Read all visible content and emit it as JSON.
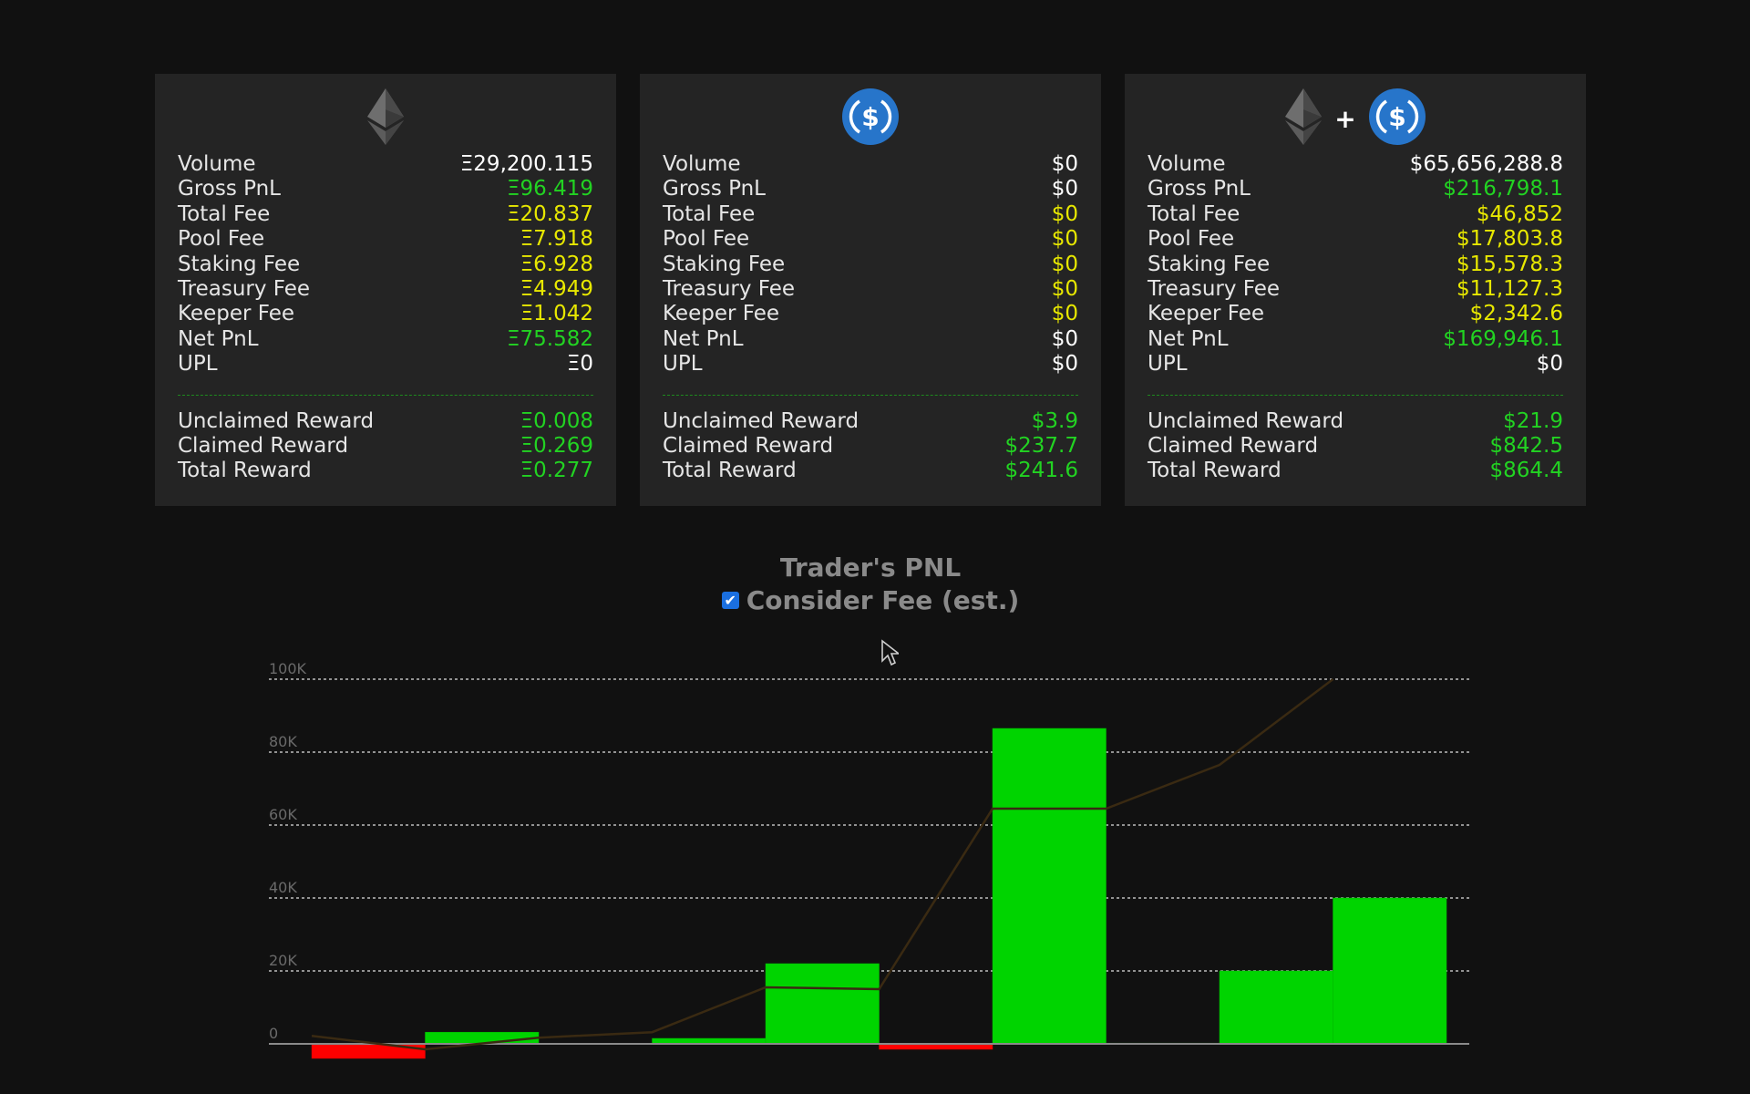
{
  "cards": [
    {
      "icons": [
        "eth-icon"
      ],
      "stats": [
        {
          "label": "Volume",
          "value": "Ξ29,200.115",
          "color": "white"
        },
        {
          "label": "Gross PnL",
          "value": "Ξ96.419",
          "color": "green"
        },
        {
          "label": "Total Fee",
          "value": "Ξ20.837",
          "color": "yellow"
        },
        {
          "label": "Pool Fee",
          "value": "Ξ7.918",
          "color": "yellow"
        },
        {
          "label": "Staking Fee",
          "value": "Ξ6.928",
          "color": "yellow"
        },
        {
          "label": "Treasury Fee",
          "value": "Ξ4.949",
          "color": "yellow"
        },
        {
          "label": "Keeper Fee",
          "value": "Ξ1.042",
          "color": "yellow"
        },
        {
          "label": "Net PnL",
          "value": "Ξ75.582",
          "color": "green"
        },
        {
          "label": "UPL",
          "value": "Ξ0",
          "color": "white"
        }
      ],
      "rewards": [
        {
          "label": "Unclaimed Reward",
          "value": "Ξ0.008"
        },
        {
          "label": "Claimed Reward",
          "value": "Ξ0.269"
        },
        {
          "label": "Total Reward",
          "value": "Ξ0.277"
        }
      ]
    },
    {
      "icons": [
        "usdc-icon"
      ],
      "stats": [
        {
          "label": "Volume",
          "value": "$0",
          "color": "white"
        },
        {
          "label": "Gross PnL",
          "value": "$0",
          "color": "white"
        },
        {
          "label": "Total Fee",
          "value": "$0",
          "color": "yellow"
        },
        {
          "label": "Pool Fee",
          "value": "$0",
          "color": "yellow"
        },
        {
          "label": "Staking Fee",
          "value": "$0",
          "color": "yellow"
        },
        {
          "label": "Treasury Fee",
          "value": "$0",
          "color": "yellow"
        },
        {
          "label": "Keeper Fee",
          "value": "$0",
          "color": "yellow"
        },
        {
          "label": "Net PnL",
          "value": "$0",
          "color": "white"
        },
        {
          "label": "UPL",
          "value": "$0",
          "color": "white"
        }
      ],
      "rewards": [
        {
          "label": "Unclaimed Reward",
          "value": "$3.9"
        },
        {
          "label": "Claimed Reward",
          "value": "$237.7"
        },
        {
          "label": "Total Reward",
          "value": "$241.6"
        }
      ]
    },
    {
      "icons": [
        "eth-icon",
        "usdc-icon"
      ],
      "plus": "+",
      "stats": [
        {
          "label": "Volume",
          "value": "$65,656,288.8",
          "color": "white"
        },
        {
          "label": "Gross PnL",
          "value": "$216,798.1",
          "color": "green"
        },
        {
          "label": "Total Fee",
          "value": "$46,852",
          "color": "yellow"
        },
        {
          "label": "Pool Fee",
          "value": "$17,803.8",
          "color": "yellow"
        },
        {
          "label": "Staking Fee",
          "value": "$15,578.3",
          "color": "yellow"
        },
        {
          "label": "Treasury Fee",
          "value": "$11,127.3",
          "color": "yellow"
        },
        {
          "label": "Keeper Fee",
          "value": "$2,342.6",
          "color": "yellow"
        },
        {
          "label": "Net PnL",
          "value": "$169,946.1",
          "color": "green"
        },
        {
          "label": "UPL",
          "value": "$0",
          "color": "white"
        }
      ],
      "rewards": [
        {
          "label": "Unclaimed Reward",
          "value": "$21.9"
        },
        {
          "label": "Claimed Reward",
          "value": "$842.5"
        },
        {
          "label": "Total Reward",
          "value": "$864.4"
        }
      ]
    }
  ],
  "colors": {
    "positive": "#00d400",
    "negative": "#ff0000",
    "cumulative_line": "#3a2a12",
    "grid": "#bdbdbd"
  },
  "chart": {
    "title": "Trader's PNL",
    "fee_checkbox_label": "Consider Fee (est.)",
    "fee_checkbox_checked": true
  },
  "chart_data": {
    "type": "bar",
    "title": "Trader's PNL",
    "ylim": [
      0,
      100000
    ],
    "y_ticks": [
      {
        "value": 0,
        "label": "0"
      },
      {
        "value": 20000,
        "label": "20K"
      },
      {
        "value": 40000,
        "label": "40K"
      },
      {
        "value": 60000,
        "label": "60K"
      },
      {
        "value": 80000,
        "label": "80K"
      },
      {
        "value": 100000,
        "label": "100K"
      }
    ],
    "grid": true,
    "series": [
      {
        "values": [
          -4000,
          3200,
          100,
          1500,
          22000,
          -1500,
          86500,
          200,
          20000,
          40000
        ]
      },
      {
        "values": [
          2200,
          -1500,
          1700,
          3200,
          15500,
          15000,
          64500,
          64500,
          76500,
          100000
        ]
      }
    ]
  }
}
